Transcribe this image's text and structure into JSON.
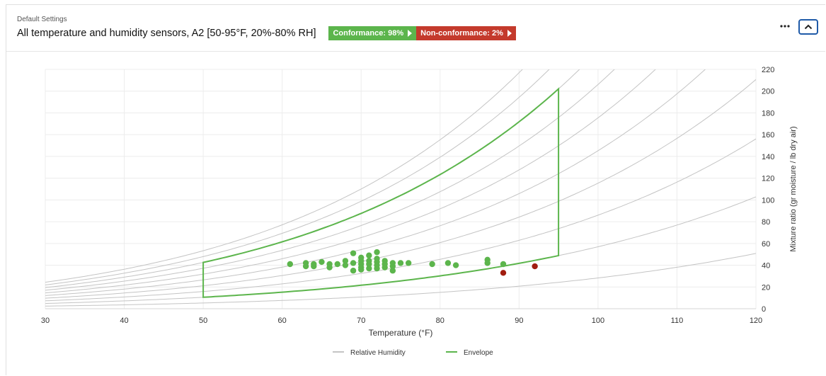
{
  "header": {
    "subtitle": "Default Settings",
    "title": "All temperature and humidity sensors, A2 [50-95°F, 20%-80% RH]",
    "conformance_label": "Conformance: 98%",
    "nonconformance_label": "Non-conformance: 2%",
    "more_icon": "ellipsis-icon",
    "collapse_icon": "chevron-up-icon"
  },
  "colors": {
    "conformance": "#5cb54c",
    "nonconformance": "#c43a2c",
    "rh_curve": "#c4c4c4",
    "envelope": "#5cb54c",
    "ok_point": "#5cb54c",
    "bad_point": "#a11d10"
  },
  "chart_data": {
    "type": "scatter",
    "xlabel": "Temperature (°F)",
    "ylabel": "Mixture ratio (gr moisture / lb dry air)",
    "xlim": [
      30,
      120
    ],
    "ylim": [
      0,
      220
    ],
    "x_ticks": [
      30,
      40,
      50,
      60,
      70,
      80,
      90,
      100,
      110,
      120
    ],
    "y_ticks": [
      0,
      20,
      40,
      60,
      80,
      100,
      120,
      140,
      160,
      180,
      200,
      220
    ],
    "y_axis_side": "right",
    "grid": true,
    "legend": {
      "placement": "bottom-center",
      "items": [
        {
          "label": "Relative Humidity",
          "color": "#c4c4c4"
        },
        {
          "label": "Envelope",
          "color": "#5cb54c"
        }
      ]
    },
    "rh_curves_percent": [
      10,
      20,
      30,
      40,
      50,
      60,
      70,
      80,
      90,
      100
    ],
    "envelope": {
      "temp_min": 50,
      "temp_max": 95,
      "rh_min": 20,
      "rh_max": 80,
      "polygon": [
        [
          50,
          11
        ],
        [
          95,
          49
        ],
        [
          95,
          202
        ],
        [
          50,
          43
        ]
      ]
    },
    "series": [
      {
        "name": "Conformance",
        "color": "#5cb54c",
        "points": [
          [
            61,
            41
          ],
          [
            63,
            42
          ],
          [
            63,
            39
          ],
          [
            64,
            41
          ],
          [
            64,
            39
          ],
          [
            65,
            43
          ],
          [
            66,
            41
          ],
          [
            66,
            38
          ],
          [
            67,
            41
          ],
          [
            68,
            44
          ],
          [
            68,
            40
          ],
          [
            69,
            51
          ],
          [
            69,
            42
          ],
          [
            69,
            35
          ],
          [
            70,
            47
          ],
          [
            70,
            44
          ],
          [
            70,
            41
          ],
          [
            70,
            38
          ],
          [
            70,
            36
          ],
          [
            71,
            49
          ],
          [
            71,
            44
          ],
          [
            71,
            41
          ],
          [
            71,
            37
          ],
          [
            72,
            52
          ],
          [
            72,
            46
          ],
          [
            72,
            43
          ],
          [
            72,
            40
          ],
          [
            72,
            37
          ],
          [
            73,
            44
          ],
          [
            73,
            41
          ],
          [
            73,
            38
          ],
          [
            74,
            42
          ],
          [
            74,
            39
          ],
          [
            74,
            35
          ],
          [
            75,
            42
          ],
          [
            76,
            42
          ],
          [
            79,
            41
          ],
          [
            81,
            42
          ],
          [
            82,
            40
          ],
          [
            86,
            45
          ],
          [
            86,
            42
          ],
          [
            88,
            41
          ]
        ]
      },
      {
        "name": "Non-conformance",
        "color": "#a11d10",
        "points": [
          [
            88,
            33
          ],
          [
            92,
            39
          ]
        ]
      }
    ]
  }
}
